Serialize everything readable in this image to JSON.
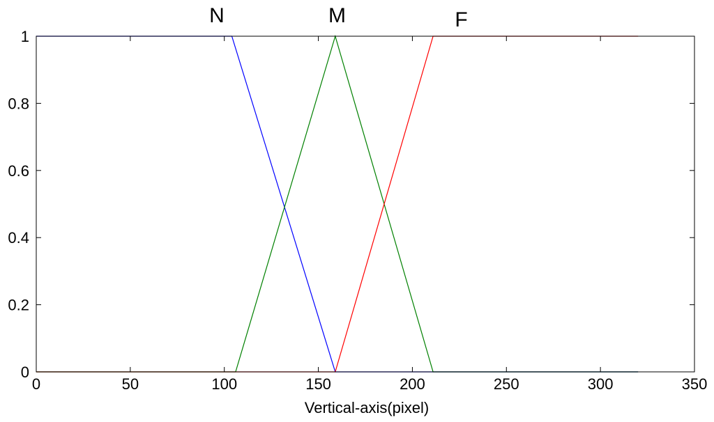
{
  "chart_data": {
    "type": "line",
    "title": "",
    "xlabel": "Vertical-axis(pixel)",
    "ylabel": "",
    "xlim": [
      0,
      350
    ],
    "ylim": [
      0,
      1
    ],
    "grid": false,
    "x_ticks": [
      0,
      50,
      100,
      150,
      200,
      250,
      300,
      350
    ],
    "x_tick_labels": [
      "0",
      "50",
      "100",
      "150",
      "200",
      "250",
      "300",
      "350"
    ],
    "y_ticks": [
      0,
      0.2,
      0.4,
      0.6,
      0.8,
      1
    ],
    "y_tick_labels": [
      "0",
      "0.2",
      "0.4",
      "0.6",
      "0.8",
      "1"
    ],
    "series": [
      {
        "name": "N",
        "color": "#0000ff",
        "x": [
          0,
          104,
          159,
          320
        ],
        "y": [
          1,
          1,
          0,
          0
        ]
      },
      {
        "name": "M",
        "color": "#008000",
        "x": [
          0,
          106,
          159,
          211,
          320
        ],
        "y": [
          0,
          0,
          1,
          0,
          0
        ]
      },
      {
        "name": "F",
        "color": "#ff0000",
        "x": [
          0,
          159,
          211,
          320
        ],
        "y": [
          0,
          0,
          1,
          1
        ]
      }
    ]
  }
}
